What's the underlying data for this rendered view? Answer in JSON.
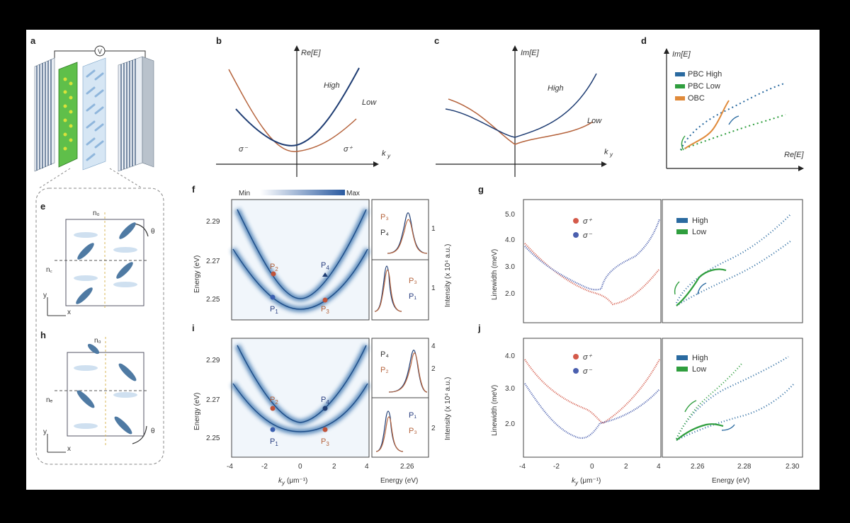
{
  "panels": {
    "a": "a",
    "b": "b",
    "c": "c",
    "d": "d",
    "e": "e",
    "f": "f",
    "g": "g",
    "h": "h",
    "i": "i",
    "j": "j"
  },
  "device": {
    "voltage_symbol": "V"
  },
  "unit_cell": {
    "e": {
      "n0": "n₀",
      "nc": "n꜀",
      "theta": "θ",
      "y": "y",
      "x": "x"
    },
    "h": {
      "n0": "n₀",
      "nc": "nₑ",
      "theta": "θ",
      "y": "y",
      "x": "x"
    }
  },
  "theory": {
    "b": {
      "axis_y": "Re[E]",
      "axis_x": "k",
      "axis_x_sub": "y",
      "high": "High",
      "low": "Low",
      "sigma_minus": "σ⁻",
      "sigma_plus": "σ⁺"
    },
    "c": {
      "axis_y": "Im[E]",
      "axis_x": "k",
      "axis_x_sub": "y",
      "high": "High",
      "low": "Low"
    },
    "d": {
      "axis_y": "Im[E]",
      "axis_x": "Re[E]",
      "legend": [
        "PBC High",
        "PBC Low",
        "OBC"
      ]
    }
  },
  "colorbar": {
    "min": "Min",
    "max": "Max"
  },
  "dispersion": {
    "ylabel": "Energy (eV)",
    "xlabel": "k",
    "xlabel_sub": "y",
    "xunit": "(μm⁻¹)",
    "yticks": [
      "2.29",
      "2.27",
      "2.25"
    ],
    "xticks": [
      "-4",
      "-2",
      "0",
      "2",
      "4"
    ],
    "f_points": {
      "p1": "P",
      "p1s": "1",
      "p2": "P",
      "p2s": "2",
      "p3": "P",
      "p3s": "3",
      "p4": "P",
      "p4s": "4"
    },
    "i_points": {
      "p1": "P",
      "p1s": "1",
      "p2": "P",
      "p2s": "2",
      "p3": "P",
      "p3s": "3",
      "p4": "P",
      "p4s": "4"
    }
  },
  "spectra": {
    "f": {
      "top_labels": [
        "P₃",
        "P₄"
      ],
      "bot_labels": [
        "P₃",
        "P₁"
      ],
      "top_tick": "1",
      "bot_tick": "1",
      "ylabel": "Intensity (x 10⁴ a.u.)"
    },
    "i": {
      "top_labels": [
        "P₄",
        "P₂"
      ],
      "bot_labels": [
        "P₁",
        "P₃"
      ],
      "top_ticks": [
        "4",
        "2"
      ],
      "bot_tick": "2",
      "ylabel": "Intensity (x 10⁴ a.u.)",
      "xtick": "2.26",
      "xlabel": "Energy (eV)"
    }
  },
  "linewidth": {
    "ylabel": "Linewidth (meV)",
    "g_yticks": [
      "5.0",
      "4.0",
      "3.0",
      "2.0"
    ],
    "j_yticks": [
      "4.0",
      "3.0",
      "2.0"
    ],
    "legend_left": [
      "σ⁺",
      "σ⁻"
    ],
    "legend_right": [
      "High",
      "Low"
    ],
    "xticks_k": [
      "-4",
      "-2",
      "0",
      "2",
      "4"
    ],
    "xticks_e": [
      "2.26",
      "2.28",
      "2.30"
    ],
    "xlabel_e": "Energy (eV)"
  },
  "colors": {
    "navy": "#1f3d73",
    "copper": "#b5633c",
    "red": "#d45a4a",
    "blue": "#4a5fae",
    "green": "#2f9e3e",
    "teal": "#2a6aa0",
    "orange": "#e08a3a"
  }
}
